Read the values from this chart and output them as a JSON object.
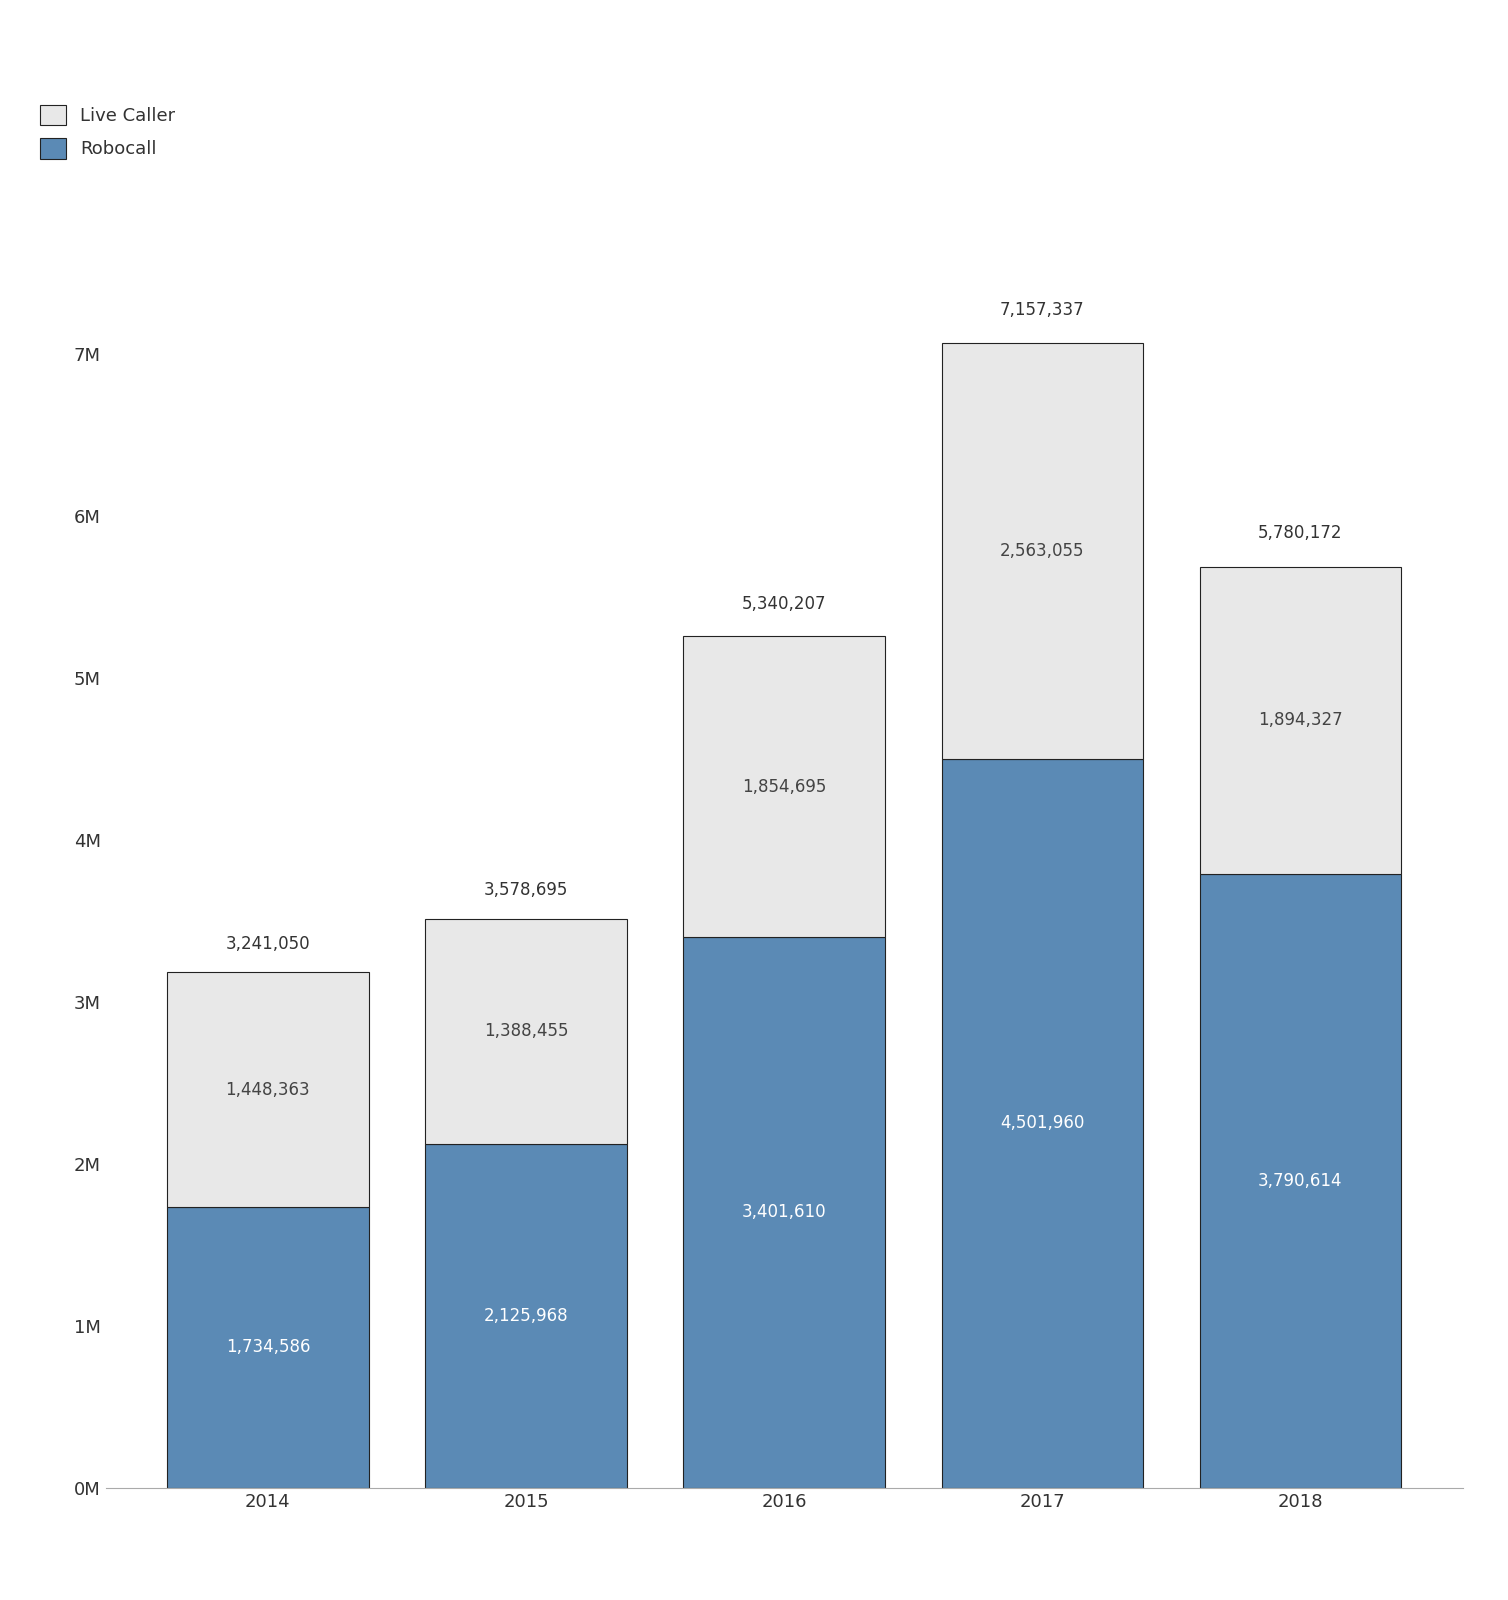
{
  "years": [
    "2014",
    "2015",
    "2016",
    "2017",
    "2018"
  ],
  "robocall": [
    1734586,
    2125968,
    3401610,
    4501960,
    3790614
  ],
  "live_caller": [
    1448363,
    1388455,
    1854695,
    2563055,
    1894327
  ],
  "totals": [
    3241050,
    3578695,
    5340207,
    7157337,
    5780172
  ],
  "robocall_color": "#5b8ab5",
  "live_caller_color": "#e8e8e8",
  "bar_edge_color": "#222222",
  "background_color": "#ffffff",
  "text_color": "#333333",
  "ylim": [
    0,
    8000000
  ],
  "yticks": [
    0,
    1000000,
    2000000,
    3000000,
    4000000,
    5000000,
    6000000,
    7000000
  ],
  "ytick_labels": [
    "0M",
    "1M",
    "2M",
    "3M",
    "4M",
    "5M",
    "6M",
    "7M"
  ],
  "legend_labels": [
    "Live Caller",
    "Robocall"
  ],
  "bar_width": 0.78,
  "label_fontsize": 13,
  "tick_fontsize": 13,
  "annotation_fontsize": 12
}
